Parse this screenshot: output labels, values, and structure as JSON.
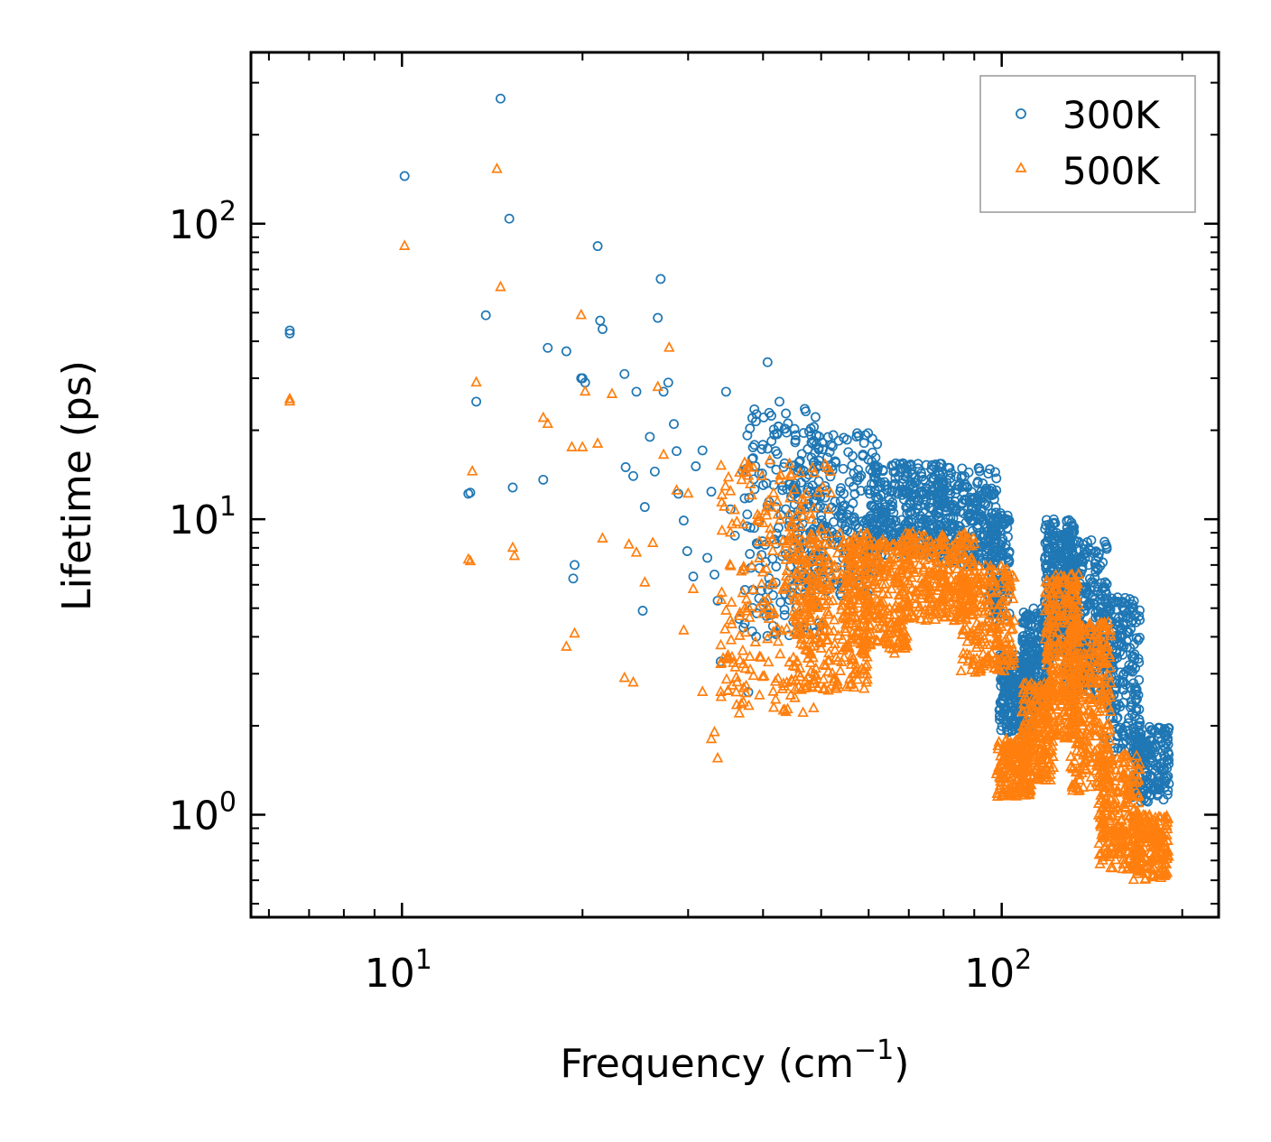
{
  "chart_data": {
    "type": "scatter",
    "x_scale": "log",
    "y_scale": "log",
    "xlim": [
      5.6,
      230
    ],
    "ylim": [
      0.45,
      380
    ],
    "xlabel_base": "Frequency (cm",
    "xlabel_sup": "−1",
    "xlabel_tail": ")",
    "ylabel": "Lifetime (ps)",
    "x_ticks": [
      {
        "value": 10,
        "base": "10",
        "exp": "1"
      },
      {
        "value": 100,
        "base": "10",
        "exp": "2"
      }
    ],
    "y_ticks": [
      {
        "value": 1,
        "base": "10",
        "exp": "0"
      },
      {
        "value": 10,
        "base": "10",
        "exp": "1"
      },
      {
        "value": 100,
        "base": "10",
        "exp": "2"
      }
    ],
    "legend": {
      "position": "top-right"
    },
    "series": [
      {
        "name": "300K",
        "marker": "circle",
        "color": "#1f77b4",
        "x": [
          6.5,
          6.5,
          10.1,
          12.9,
          13.0,
          13.3,
          13.8,
          14.6,
          15.1,
          15.3,
          17.2,
          17.5,
          18.8,
          19.3,
          19.4,
          19.9,
          20.0,
          20.2,
          21.2,
          21.4,
          21.6,
          23.5,
          23.6,
          24.3,
          24.6,
          25.2,
          25.4,
          25.9,
          26.4,
          26.7,
          27.0,
          27.3,
          27.8,
          28.4,
          28.7,
          28.9,
          29.5,
          29.9,
          30.6,
          30.9,
          31.7,
          32.3,
          32.8,
          33.2,
          33.6,
          34.0,
          34.7,
          35.3,
          35.9,
          36.5,
          37.1,
          37.8,
          38.5,
          39.4,
          40.1,
          40.7,
          41.3,
          42.0,
          42.6
        ],
        "y": [
          43.5,
          42.5,
          145,
          12.2,
          12.3,
          25,
          49,
          265,
          104,
          12.8,
          13.6,
          38,
          37,
          6.3,
          7.0,
          30,
          30,
          29,
          84,
          47,
          44,
          31,
          15,
          14,
          27,
          4.9,
          11,
          19,
          14.5,
          48,
          65,
          27,
          29,
          21,
          17,
          12.2,
          9.9,
          7.8,
          6.4,
          15.1,
          17.1,
          7.4,
          12.4,
          6.5,
          5.3,
          3.3,
          27,
          10.8,
          8.8,
          4.6,
          4.3,
          2.6,
          16.1,
          5.4,
          22.1,
          34,
          22.4,
          17,
          25
        ],
        "bulk_regions": [
          {
            "x0": 37,
            "x1": 50,
            "y0": 4.0,
            "y1": 24,
            "n": 180
          },
          {
            "x0": 45,
            "x1": 62,
            "y0": 5.5,
            "y1": 20,
            "n": 260
          },
          {
            "x0": 60,
            "x1": 80,
            "y0": 7.5,
            "y1": 15.5,
            "n": 320
          },
          {
            "x0": 78,
            "x1": 98,
            "y0": 7,
            "y1": 15,
            "n": 260
          },
          {
            "x0": 95,
            "x1": 103,
            "y0": 4.5,
            "y1": 10.5,
            "n": 120
          },
          {
            "x0": 99,
            "x1": 112,
            "y0": 1.9,
            "y1": 3.5,
            "n": 240
          },
          {
            "x0": 108,
            "x1": 120,
            "y0": 2.3,
            "y1": 5.0,
            "n": 200
          },
          {
            "x0": 118,
            "x1": 132,
            "y0": 3.5,
            "y1": 10,
            "n": 320
          },
          {
            "x0": 128,
            "x1": 150,
            "y0": 2.5,
            "y1": 8.5,
            "n": 300
          },
          {
            "x0": 148,
            "x1": 170,
            "y0": 1.6,
            "y1": 5.5,
            "n": 220
          },
          {
            "x0": 165,
            "x1": 190,
            "y0": 1.1,
            "y1": 2.0,
            "n": 180
          }
        ]
      },
      {
        "name": "500K",
        "marker": "triangle",
        "color": "#ff7f0e",
        "x": [
          6.5,
          6.5,
          10.1,
          12.9,
          13.0,
          13.1,
          13.3,
          14.4,
          14.6,
          15.3,
          15.4,
          17.2,
          17.5,
          18.8,
          19.2,
          19.4,
          19.9,
          20.0,
          20.2,
          21.2,
          21.6,
          22.4,
          23.5,
          23.9,
          24.3,
          24.6,
          25.4,
          26.2,
          26.7,
          27.3,
          27.9,
          28.7,
          29.5,
          30.0,
          30.6,
          31.7,
          32.8,
          33.2,
          33.6,
          34.0,
          34.7,
          35.3,
          36.5,
          37.1
        ],
        "y": [
          25.5,
          25,
          84,
          7.3,
          7.2,
          14.5,
          29,
          153,
          61,
          8,
          7.5,
          22,
          21,
          3.7,
          17.5,
          4.1,
          49,
          17.5,
          27,
          18,
          8.6,
          26.5,
          2.9,
          8.2,
          2.8,
          7.7,
          6.1,
          8.3,
          28,
          16.5,
          38,
          12.5,
          4.2,
          12.2,
          5.8,
          2.6,
          1.8,
          1.9,
          1.55,
          2.6,
          4.9,
          9.0,
          2.2,
          2.4
        ],
        "bulk_regions": [
          {
            "x0": 34,
            "x1": 52,
            "y0": 2.2,
            "y1": 16,
            "n": 260
          },
          {
            "x0": 45,
            "x1": 60,
            "y0": 2.6,
            "y1": 9,
            "n": 280
          },
          {
            "x0": 55,
            "x1": 70,
            "y0": 3.5,
            "y1": 8.5,
            "n": 280
          },
          {
            "x0": 68,
            "x1": 90,
            "y0": 4.5,
            "y1": 9,
            "n": 300
          },
          {
            "x0": 85,
            "x1": 105,
            "y0": 3,
            "y1": 7,
            "n": 220
          },
          {
            "x0": 98,
            "x1": 112,
            "y0": 1.15,
            "y1": 1.8,
            "n": 200
          },
          {
            "x0": 108,
            "x1": 122,
            "y0": 1.3,
            "y1": 2.8,
            "n": 200
          },
          {
            "x0": 118,
            "x1": 135,
            "y0": 1.8,
            "y1": 6.5,
            "n": 320
          },
          {
            "x0": 130,
            "x1": 152,
            "y0": 1.2,
            "y1": 4.5,
            "n": 300
          },
          {
            "x0": 145,
            "x1": 170,
            "y0": 0.65,
            "y1": 1.6,
            "n": 260
          },
          {
            "x0": 165,
            "x1": 190,
            "y0": 0.6,
            "y1": 1.0,
            "n": 180
          }
        ]
      }
    ]
  }
}
